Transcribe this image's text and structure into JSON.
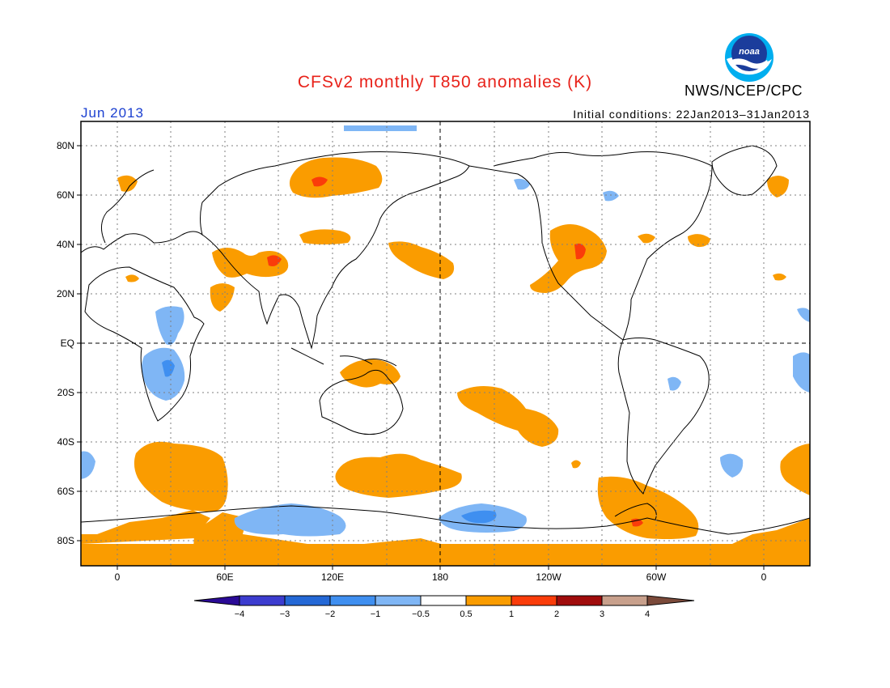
{
  "header": {
    "title": "CFSv2 monthly T850 anomalies (K)",
    "agency": "NWS/NCEP/CPC",
    "month": "Jun 2013",
    "initial_conditions": "Initial conditions: 22Jan2013–31Jan2013",
    "logo_text": "noaa"
  },
  "map": {
    "lat_labels": [
      "80N",
      "60N",
      "40N",
      "20N",
      "EQ",
      "20S",
      "40S",
      "60S",
      "80S"
    ],
    "lon_labels": [
      "0",
      "60E",
      "120E",
      "180",
      "120W",
      "60W",
      "0"
    ]
  },
  "colorbar": {
    "labels": [
      "−4",
      "−3",
      "−2",
      "−1",
      "−0.5",
      "0.5",
      "1",
      "2",
      "3",
      "4"
    ],
    "colors": [
      "#2a0a96",
      "#3c3ccf",
      "#2468d6",
      "#3f8ff0",
      "#7fb6f5",
      "#ffffff",
      "#fa9c00",
      "#fa3c0a",
      "#a00c0c",
      "#c8a08c",
      "#7b4a3a"
    ]
  }
}
